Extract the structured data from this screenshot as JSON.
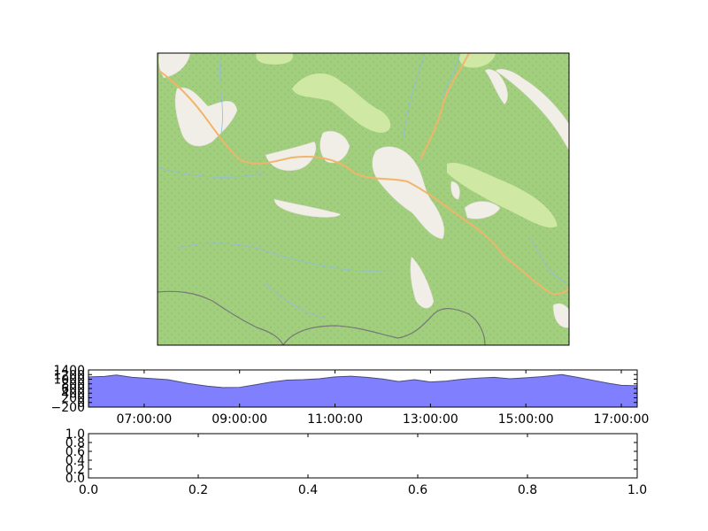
{
  "colors": {
    "land": "#a2cf7d",
    "meadow": "#cfe8a4",
    "settlement": "#f1eee8",
    "road": "#f0b56b",
    "river": "#8fbce0",
    "boundary": "#777777",
    "elevation_fill": "#8080ff",
    "elevation_line": "#4a4a7a"
  },
  "chart_data": [
    {
      "type": "map",
      "description_visible": "topographic map tile with forest, meadows, villages, roads and streams"
    },
    {
      "type": "area",
      "xlabel": "",
      "ylabel": "",
      "x_ticks": [
        "07:00:00",
        "09:00:00",
        "11:00:00",
        "13:00:00",
        "15:00:00",
        "17:00:00"
      ],
      "y_ticks": [
        "−200",
        "0",
        "200",
        "400",
        "600",
        "800",
        "1000",
        "1200",
        "1400"
      ],
      "xlim": [
        "05:50:00",
        "17:20:00"
      ],
      "ylim": [
        -200,
        1400
      ],
      "series": [
        {
          "x": [
            "05:50",
            "06:10",
            "06:25",
            "06:45",
            "07:05",
            "07:30",
            "07:55",
            "08:20",
            "08:40",
            "09:00",
            "09:20",
            "09:40",
            "10:00",
            "10:20",
            "10:40",
            "11:00",
            "11:20",
            "11:40",
            "12:00",
            "12:20",
            "12:40",
            "13:00",
            "13:20",
            "13:40",
            "14:00",
            "14:20",
            "14:40",
            "15:00",
            "15:20",
            "15:45",
            "16:05",
            "16:25",
            "16:45",
            "17:00",
            "17:20"
          ],
          "values": [
            1100,
            1120,
            1180,
            1080,
            1040,
            980,
            820,
            700,
            640,
            650,
            760,
            880,
            960,
            980,
            1020,
            1100,
            1130,
            1080,
            1010,
            900,
            980,
            880,
            920,
            1000,
            1050,
            1080,
            1020,
            1060,
            1110,
            1200,
            1080,
            950,
            820,
            740,
            720
          ]
        }
      ]
    },
    {
      "type": "line",
      "xlabel": "",
      "ylabel": "",
      "x_ticks": [
        "0.0",
        "0.2",
        "0.4",
        "0.6",
        "0.8",
        "1.0"
      ],
      "y_ticks": [
        "0.0",
        "0.2",
        "0.4",
        "0.6",
        "0.8",
        "1.0"
      ],
      "xlim": [
        0,
        1
      ],
      "ylim": [
        0,
        1
      ],
      "series": []
    }
  ]
}
